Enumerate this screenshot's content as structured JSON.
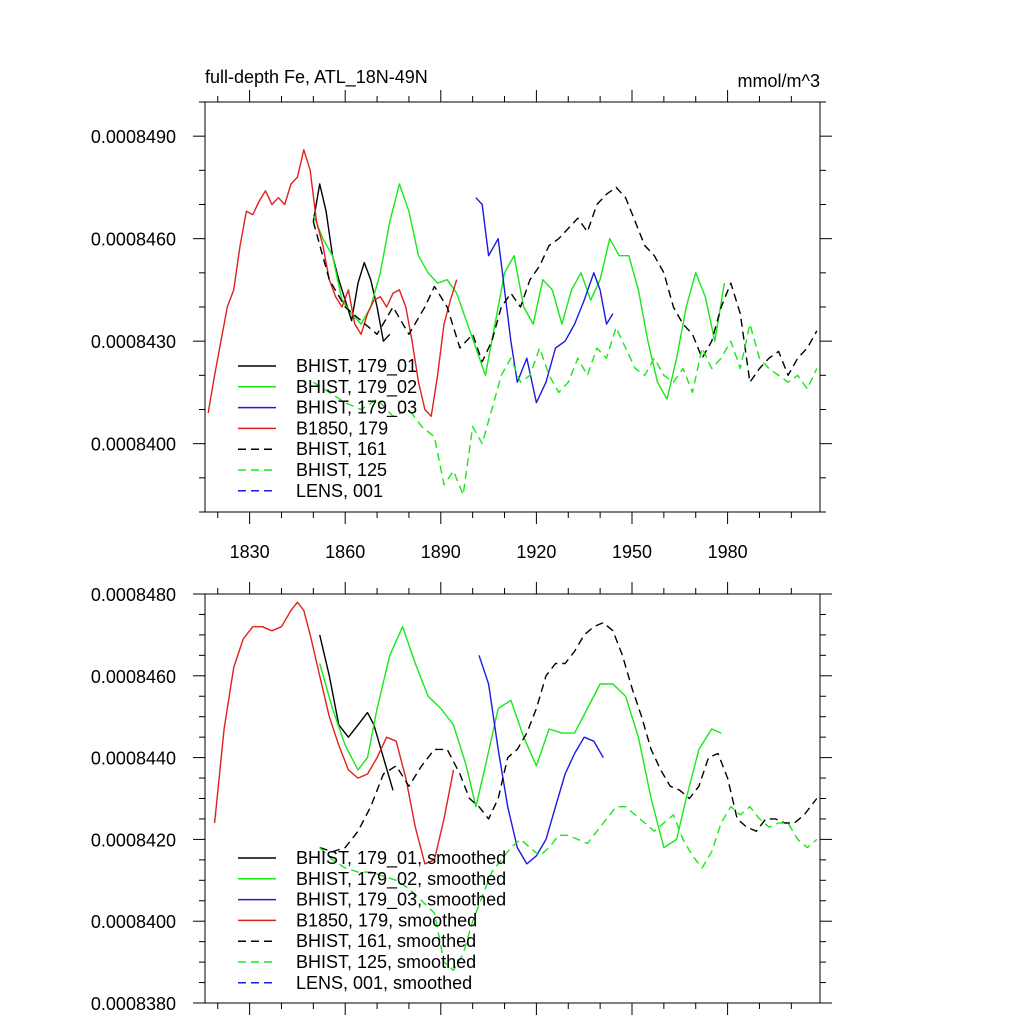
{
  "header": {
    "title": "full-depth Fe, ATL_18N-49N",
    "units": "mmol/m^3"
  },
  "colors": {
    "black": "#000000",
    "green": "#18e818",
    "blue": "#1a1ae0",
    "red": "#e0201c"
  },
  "chart_data": [
    {
      "type": "line",
      "xlim": [
        1816,
        2009
      ],
      "ylim": [
        0.000838,
        0.00085
      ],
      "x_ticks": [
        1830,
        1860,
        1890,
        1920,
        1950,
        1980
      ],
      "x_tick_labels": [
        "1830",
        "1860",
        "1890",
        "1920",
        "1950",
        "1980"
      ],
      "y_ticks": [
        0.00084,
        0.000843,
        0.000846,
        0.000849
      ],
      "y_tick_labels": [
        "0.0008400",
        "0.0008430",
        "0.0008460",
        "0.0008490"
      ],
      "legend_placement": "bottom-left",
      "series": [
        {
          "name": "BHIST, 179_01",
          "color": "black",
          "dash": "solid",
          "x": [
            1850,
            1852,
            1854,
            1856,
            1858,
            1860,
            1862,
            1864,
            1866,
            1868,
            1870,
            1872,
            1874
          ],
          "y": [
            0.0008465,
            0.0008476,
            0.0008468,
            0.0008455,
            0.0008448,
            0.0008442,
            0.0008436,
            0.0008447,
            0.0008453,
            0.0008448,
            0.000844,
            0.000843,
            0.0008432
          ]
        },
        {
          "name": "BHIST, 179_02",
          "color": "green",
          "dash": "solid",
          "x": [
            1850,
            1853,
            1856,
            1859,
            1862,
            1865,
            1868,
            1871,
            1874,
            1877,
            1880,
            1883,
            1886,
            1889,
            1892,
            1895,
            1898,
            1901,
            1904,
            1907,
            1910,
            1913,
            1916,
            1919,
            1922,
            1925,
            1928,
            1931,
            1934,
            1937,
            1940,
            1943,
            1946,
            1949,
            1952,
            1955,
            1958,
            1961,
            1964,
            1967,
            1970,
            1973,
            1976,
            1979
          ],
          "y": [
            0.0008467,
            0.000846,
            0.0008455,
            0.0008442,
            0.0008438,
            0.0008435,
            0.000844,
            0.000845,
            0.0008465,
            0.0008476,
            0.0008468,
            0.0008455,
            0.000845,
            0.0008447,
            0.0008448,
            0.0008444,
            0.0008436,
            0.0008428,
            0.000842,
            0.0008435,
            0.000845,
            0.0008455,
            0.000844,
            0.0008435,
            0.0008448,
            0.0008445,
            0.0008435,
            0.0008445,
            0.000845,
            0.0008442,
            0.0008448,
            0.000846,
            0.0008455,
            0.0008455,
            0.0008445,
            0.000843,
            0.0008418,
            0.0008413,
            0.0008425,
            0.000844,
            0.000845,
            0.0008443,
            0.000843,
            0.0008447
          ]
        },
        {
          "name": "BHIST, 179_03",
          "color": "blue",
          "dash": "solid",
          "x": [
            1901,
            1903,
            1905,
            1908,
            1910,
            1912,
            1914,
            1917,
            1920,
            1923,
            1926,
            1929,
            1932,
            1935,
            1938,
            1940,
            1942,
            1944
          ],
          "y": [
            0.0008472,
            0.000847,
            0.0008455,
            0.000846,
            0.0008445,
            0.000843,
            0.0008418,
            0.0008425,
            0.0008412,
            0.0008418,
            0.0008428,
            0.000843,
            0.0008435,
            0.0008442,
            0.000845,
            0.0008445,
            0.0008435,
            0.0008438
          ]
        },
        {
          "name": "B1850, 179",
          "color": "red",
          "dash": "solid",
          "x": [
            1817,
            1819,
            1821,
            1823,
            1825,
            1827,
            1829,
            1831,
            1833,
            1835,
            1837,
            1839,
            1841,
            1843,
            1845,
            1847,
            1849,
            1851,
            1853,
            1855,
            1857,
            1859,
            1861,
            1863,
            1865,
            1867,
            1869,
            1871,
            1873,
            1875,
            1877,
            1879,
            1881,
            1883,
            1885,
            1887,
            1889,
            1891,
            1893,
            1895
          ],
          "y": [
            0.0008409,
            0.000842,
            0.000843,
            0.000844,
            0.0008445,
            0.0008458,
            0.0008468,
            0.0008467,
            0.0008471,
            0.0008474,
            0.000847,
            0.0008472,
            0.000847,
            0.0008476,
            0.0008478,
            0.0008486,
            0.000848,
            0.0008465,
            0.0008458,
            0.0008448,
            0.0008443,
            0.000844,
            0.0008445,
            0.0008435,
            0.0008432,
            0.0008438,
            0.0008442,
            0.0008443,
            0.000844,
            0.0008444,
            0.0008445,
            0.000844,
            0.000843,
            0.0008418,
            0.000841,
            0.0008408,
            0.000842,
            0.0008435,
            0.0008442,
            0.0008448
          ]
        },
        {
          "name": "BHIST, 161",
          "color": "black",
          "dash": "dashed",
          "x": [
            1850,
            1855,
            1860,
            1865,
            1870,
            1875,
            1880,
            1885,
            1888,
            1892,
            1896,
            1900,
            1903,
            1906,
            1909,
            1912,
            1915,
            1918,
            1921,
            1924,
            1927,
            1930,
            1933,
            1936,
            1939,
            1942,
            1945,
            1948,
            1951,
            1954,
            1957,
            1960,
            1963,
            1966,
            1969,
            1972,
            1975,
            1978,
            1981,
            1984,
            1987,
            1990,
            1993,
            1996,
            1999,
            2002,
            2005,
            2008
          ],
          "y": [
            0.0008465,
            0.0008448,
            0.000844,
            0.0008436,
            0.0008432,
            0.000844,
            0.0008432,
            0.000844,
            0.0008446,
            0.000844,
            0.0008428,
            0.0008432,
            0.0008424,
            0.000843,
            0.000844,
            0.0008444,
            0.000844,
            0.0008448,
            0.0008452,
            0.0008458,
            0.000846,
            0.0008463,
            0.0008466,
            0.0008462,
            0.000847,
            0.0008473,
            0.0008475,
            0.0008472,
            0.0008465,
            0.0008458,
            0.0008455,
            0.000845,
            0.000844,
            0.0008435,
            0.0008432,
            0.0008425,
            0.000843,
            0.000844,
            0.0008447,
            0.0008438,
            0.0008418,
            0.0008422,
            0.0008425,
            0.0008427,
            0.000842,
            0.0008425,
            0.0008428,
            0.0008433
          ]
        },
        {
          "name": "BHIST, 125",
          "color": "green",
          "dash": "dashed",
          "x": [
            1850,
            1855,
            1860,
            1865,
            1870,
            1875,
            1880,
            1884,
            1888,
            1891,
            1894,
            1897,
            1900,
            1903,
            1906,
            1909,
            1912,
            1915,
            1918,
            1921,
            1924,
            1927,
            1930,
            1933,
            1936,
            1939,
            1942,
            1945,
            1948,
            1951,
            1954,
            1957,
            1960,
            1963,
            1966,
            1969,
            1972,
            1975,
            1978,
            1981,
            1984,
            1987,
            1990,
            1993,
            1996,
            1999,
            2002,
            2005,
            2008
          ],
          "y": [
            0.0008418,
            0.0008415,
            0.0008412,
            0.000841,
            0.0008413,
            0.0008408,
            0.000841,
            0.0008405,
            0.0008402,
            0.0008388,
            0.0008392,
            0.0008385,
            0.0008405,
            0.00084,
            0.000841,
            0.000842,
            0.0008425,
            0.0008418,
            0.000842,
            0.0008428,
            0.000842,
            0.0008415,
            0.0008418,
            0.0008425,
            0.000842,
            0.0008428,
            0.0008425,
            0.0008434,
            0.0008428,
            0.0008422,
            0.000842,
            0.0008425,
            0.000842,
            0.0008418,
            0.0008422,
            0.0008415,
            0.0008428,
            0.0008422,
            0.0008425,
            0.000843,
            0.0008422,
            0.0008435,
            0.0008425,
            0.0008422,
            0.000842,
            0.0008418,
            0.000842,
            0.0008416,
            0.0008422
          ]
        },
        {
          "name": "LENS, 001",
          "color": "blue",
          "dash": "dashed",
          "x": [],
          "y": []
        }
      ]
    },
    {
      "type": "line",
      "xlim": [
        1816,
        2009
      ],
      "ylim": [
        0.000838,
        0.000848
      ],
      "x_ticks": [
        1830,
        1860,
        1890,
        1920,
        1950,
        1980
      ],
      "x_tick_labels": [],
      "y_ticks": [
        0.000838,
        0.00084,
        0.000842,
        0.000844,
        0.000846,
        0.000848
      ],
      "y_tick_labels": [
        "0.0008380",
        "0.0008400",
        "0.0008420",
        "0.0008440",
        "0.0008460",
        "0.0008480"
      ],
      "legend_placement": "bottom-left",
      "series": [
        {
          "name": "BHIST, 179_01, smoothed",
          "color": "black",
          "dash": "solid",
          "x": [
            1852,
            1855,
            1858,
            1861,
            1864,
            1867,
            1869,
            1872,
            1875
          ],
          "y": [
            0.000847,
            0.000846,
            0.0008448,
            0.0008445,
            0.0008448,
            0.0008451,
            0.0008448,
            0.000844,
            0.0008432
          ]
        },
        {
          "name": "BHIST, 179_02, smoothed",
          "color": "green",
          "dash": "solid",
          "x": [
            1852,
            1856,
            1860,
            1864,
            1867,
            1870,
            1874,
            1878,
            1882,
            1886,
            1890,
            1894,
            1898,
            1901,
            1904,
            1908,
            1912,
            1916,
            1920,
            1924,
            1928,
            1932,
            1936,
            1940,
            1944,
            1948,
            1952,
            1956,
            1960,
            1964,
            1967,
            1971,
            1975,
            1978
          ],
          "y": [
            0.0008463,
            0.0008452,
            0.0008443,
            0.0008437,
            0.000844,
            0.0008452,
            0.0008465,
            0.0008472,
            0.0008463,
            0.0008455,
            0.0008452,
            0.0008448,
            0.0008438,
            0.0008428,
            0.0008438,
            0.0008452,
            0.0008454,
            0.0008445,
            0.0008438,
            0.0008447,
            0.0008446,
            0.0008446,
            0.0008452,
            0.0008458,
            0.0008458,
            0.0008455,
            0.0008445,
            0.000843,
            0.0008418,
            0.000842,
            0.000843,
            0.0008442,
            0.0008447,
            0.0008446
          ]
        },
        {
          "name": "BHIST, 179_03, smoothed",
          "color": "blue",
          "dash": "solid",
          "x": [
            1902,
            1905,
            1908,
            1911,
            1914,
            1917,
            1920,
            1923,
            1926,
            1929,
            1932,
            1935,
            1938,
            1941
          ],
          "y": [
            0.0008465,
            0.0008458,
            0.0008442,
            0.0008428,
            0.0008418,
            0.0008414,
            0.0008416,
            0.000842,
            0.0008428,
            0.0008436,
            0.0008441,
            0.0008445,
            0.0008444,
            0.000844
          ]
        },
        {
          "name": "B1850, 179, smoothed",
          "color": "red",
          "dash": "solid",
          "x": [
            1819,
            1822,
            1825,
            1828,
            1831,
            1834,
            1837,
            1840,
            1843,
            1845,
            1847,
            1849,
            1852,
            1855,
            1858,
            1861,
            1864,
            1867,
            1870,
            1873,
            1876,
            1879,
            1882,
            1885,
            1888,
            1891,
            1894
          ],
          "y": [
            0.0008424,
            0.0008447,
            0.0008462,
            0.0008469,
            0.0008472,
            0.0008472,
            0.0008471,
            0.0008472,
            0.0008476,
            0.0008478,
            0.0008476,
            0.000847,
            0.000846,
            0.000845,
            0.0008443,
            0.0008437,
            0.0008435,
            0.0008436,
            0.000844,
            0.0008445,
            0.0008444,
            0.0008435,
            0.0008423,
            0.0008414,
            0.0008415,
            0.0008425,
            0.0008437
          ]
        },
        {
          "name": "BHIST, 161, smoothed",
          "color": "black",
          "dash": "dashed",
          "x": [
            1852,
            1856,
            1860,
            1864,
            1868,
            1872,
            1876,
            1880,
            1884,
            1888,
            1892,
            1896,
            1899,
            1902,
            1905,
            1908,
            1911,
            1914,
            1917,
            1920,
            1923,
            1926,
            1929,
            1932,
            1935,
            1938,
            1941,
            1944,
            1947,
            1950,
            1953,
            1956,
            1959,
            1962,
            1965,
            1968,
            1971,
            1974,
            1977,
            1980,
            1983,
            1986,
            1989,
            1992,
            1995,
            1998,
            2001,
            2004,
            2008
          ],
          "y": [
            0.0008418,
            0.0008417,
            0.0008418,
            0.0008422,
            0.0008428,
            0.0008436,
            0.0008438,
            0.0008433,
            0.0008438,
            0.0008442,
            0.0008442,
            0.0008436,
            0.000843,
            0.0008428,
            0.0008425,
            0.000843,
            0.000844,
            0.0008442,
            0.0008446,
            0.0008452,
            0.000846,
            0.0008463,
            0.0008463,
            0.0008466,
            0.000847,
            0.0008472,
            0.0008473,
            0.0008471,
            0.0008465,
            0.0008457,
            0.000845,
            0.0008442,
            0.0008437,
            0.0008433,
            0.0008432,
            0.000843,
            0.0008433,
            0.000844,
            0.0008441,
            0.0008435,
            0.0008425,
            0.0008423,
            0.0008422,
            0.0008425,
            0.0008425,
            0.0008424,
            0.0008424,
            0.0008426,
            0.000843
          ]
        },
        {
          "name": "BHIST, 125, smoothed",
          "color": "green",
          "dash": "dashed",
          "x": [
            1852,
            1856,
            1860,
            1864,
            1868,
            1872,
            1876,
            1880,
            1884,
            1888,
            1891,
            1894,
            1897,
            1900,
            1903,
            1906,
            1909,
            1912,
            1915,
            1918,
            1921,
            1924,
            1927,
            1930,
            1933,
            1936,
            1939,
            1942,
            1945,
            1948,
            1951,
            1954,
            1957,
            1960,
            1963,
            1966,
            1969,
            1972,
            1975,
            1978,
            1981,
            1984,
            1987,
            1990,
            1993,
            1996,
            1999,
            2002,
            2005,
            2008
          ],
          "y": [
            0.0008418,
            0.0008415,
            0.0008413,
            0.0008412,
            0.0008412,
            0.0008411,
            0.000841,
            0.0008408,
            0.0008405,
            0.0008402,
            0.000839,
            0.0008388,
            0.0008392,
            0.00084,
            0.0008406,
            0.0008412,
            0.0008415,
            0.0008418,
            0.000842,
            0.0008418,
            0.0008416,
            0.0008418,
            0.0008421,
            0.0008421,
            0.000842,
            0.0008419,
            0.0008422,
            0.0008425,
            0.0008428,
            0.0008428,
            0.0008426,
            0.0008424,
            0.0008422,
            0.0008424,
            0.0008426,
            0.000842,
            0.0008416,
            0.0008413,
            0.0008417,
            0.0008424,
            0.0008428,
            0.0008426,
            0.0008428,
            0.0008425,
            0.0008423,
            0.0008424,
            0.0008424,
            0.000842,
            0.0008418,
            0.000842
          ]
        },
        {
          "name": "LENS, 001, smoothed",
          "color": "blue",
          "dash": "dashed",
          "x": [],
          "y": []
        }
      ]
    }
  ]
}
